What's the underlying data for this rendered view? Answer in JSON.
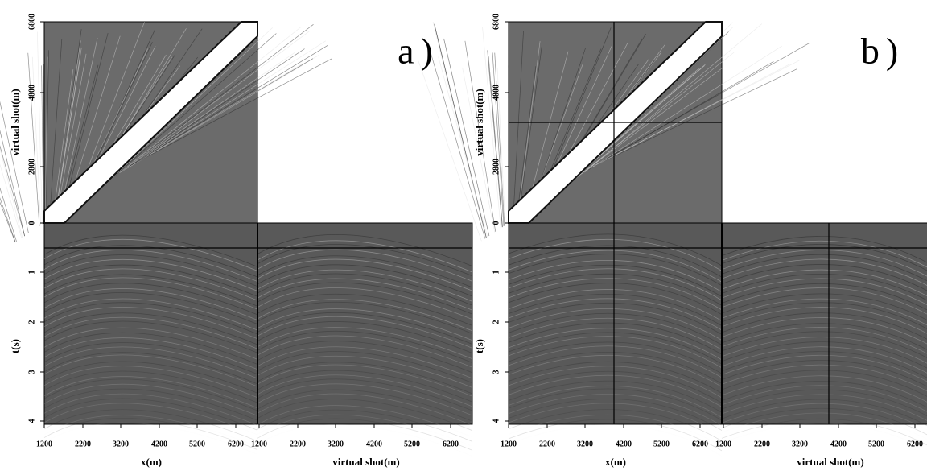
{
  "panels": [
    {
      "label": "a)",
      "top_y_title": "virtual shot(m)",
      "bottom_y_title": "t(s)",
      "x_title_left": "x(m)",
      "x_title_right": "virtual shot(m)",
      "top_y_ticks": [
        "6800",
        "4800",
        "2800",
        "0"
      ],
      "t_ticks": [
        "1",
        "2",
        "3",
        "4"
      ],
      "x_ticks_left": [
        "1200",
        "2200",
        "3200",
        "4200",
        "5200",
        "6200"
      ],
      "x_ticks_right": [
        "1200",
        "2200",
        "3200",
        "4200",
        "5200",
        "6200"
      ]
    },
    {
      "label": "b)",
      "top_y_title": "virtual shot(m)",
      "bottom_y_title": "t(s)",
      "x_title_left": "x(m)",
      "x_title_right": "virtual shot(m)",
      "top_y_ticks": [
        "6800",
        "4800",
        "2800",
        "0"
      ],
      "t_ticks": [
        "1",
        "2",
        "3",
        "4"
      ],
      "x_ticks_left": [
        "1200",
        "2200",
        "3200",
        "4200",
        "5200",
        "6200"
      ],
      "x_ticks_right": [
        "1200",
        "2200",
        "3200",
        "4200",
        "5200",
        "6200"
      ]
    }
  ]
}
